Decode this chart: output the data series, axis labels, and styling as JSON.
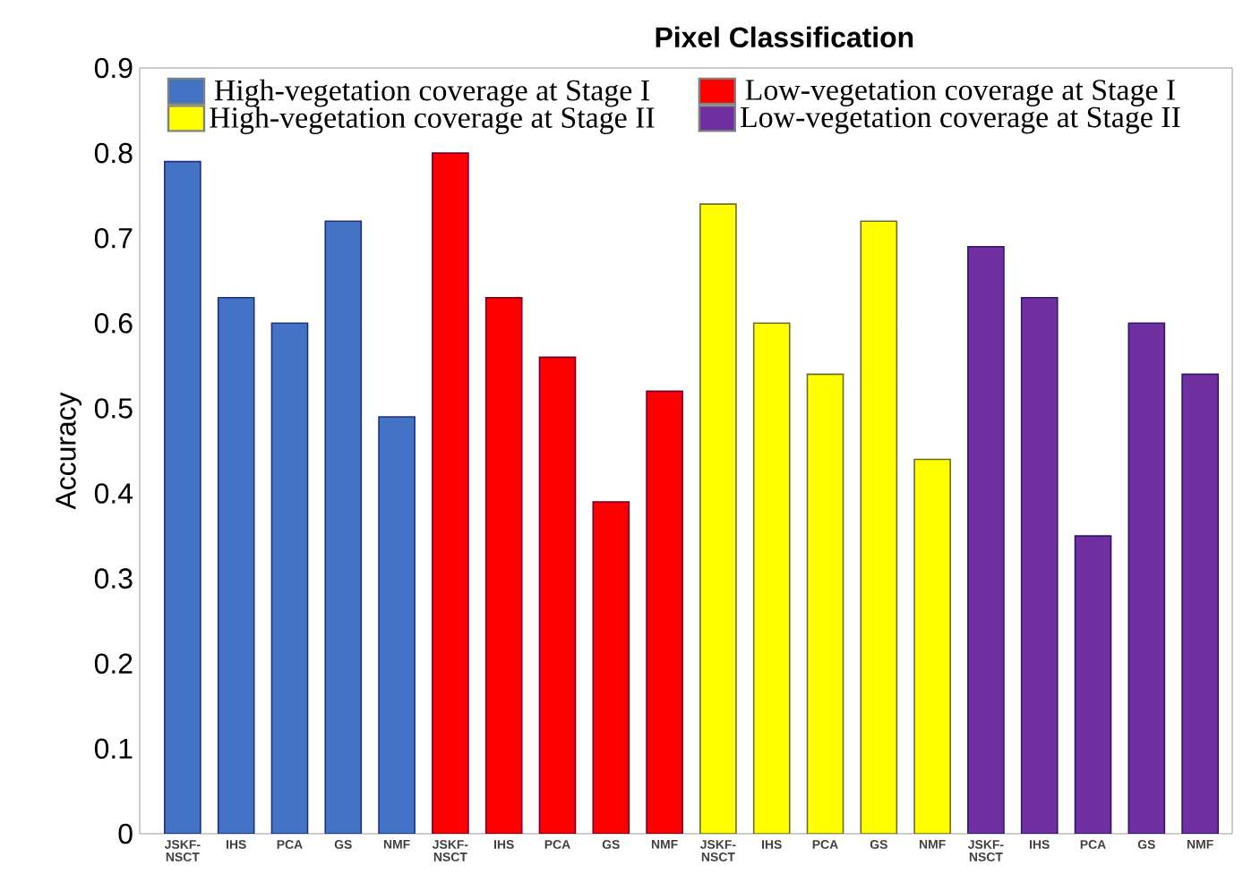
{
  "chart_data": {
    "type": "bar",
    "title": "Pixel Classification",
    "ylabel": "Accuracy",
    "categories": [
      "JSKF-NSCT",
      "IHS",
      "PCA",
      "GS",
      "NMF",
      "JSKF-NSCT",
      "IHS",
      "PCA",
      "GS",
      "NMF",
      "JSKF-NSCT",
      "IHS",
      "PCA",
      "GS",
      "NMF",
      "JSKF-NSCT",
      "IHS",
      "PCA",
      "GS",
      "NMF"
    ],
    "series": [
      {
        "name": "High-vegetation coverage at Stage I",
        "color": "#4472c4",
        "values": [
          0.79,
          0.63,
          0.6,
          0.72,
          0.49,
          null,
          null,
          null,
          null,
          null,
          null,
          null,
          null,
          null,
          null,
          null,
          null,
          null,
          null,
          null
        ]
      },
      {
        "name": "Low-vegetation coverage at Stage I",
        "color": "#ff0000",
        "values": [
          null,
          null,
          null,
          null,
          null,
          0.8,
          0.63,
          0.56,
          0.39,
          0.52,
          null,
          null,
          null,
          null,
          null,
          null,
          null,
          null,
          null,
          null
        ]
      },
      {
        "name": "High-vegetation coverage at Stage II",
        "color": "#ffff00",
        "values": [
          null,
          null,
          null,
          null,
          null,
          null,
          null,
          null,
          null,
          null,
          0.74,
          0.6,
          0.54,
          0.72,
          0.44,
          null,
          null,
          null,
          null,
          null
        ]
      },
      {
        "name": "Low-vegetation coverage at Stage II",
        "color": "#7030a0",
        "values": [
          null,
          null,
          null,
          null,
          null,
          null,
          null,
          null,
          null,
          null,
          null,
          null,
          null,
          null,
          null,
          0.69,
          0.63,
          0.35,
          0.6,
          0.54
        ]
      }
    ],
    "ylim": [
      0,
      0.9
    ],
    "yticks": [
      0,
      0.1,
      0.2,
      0.3,
      0.4,
      0.5,
      0.6,
      0.7,
      0.8,
      0.9
    ],
    "grid": false,
    "legend": "top"
  }
}
